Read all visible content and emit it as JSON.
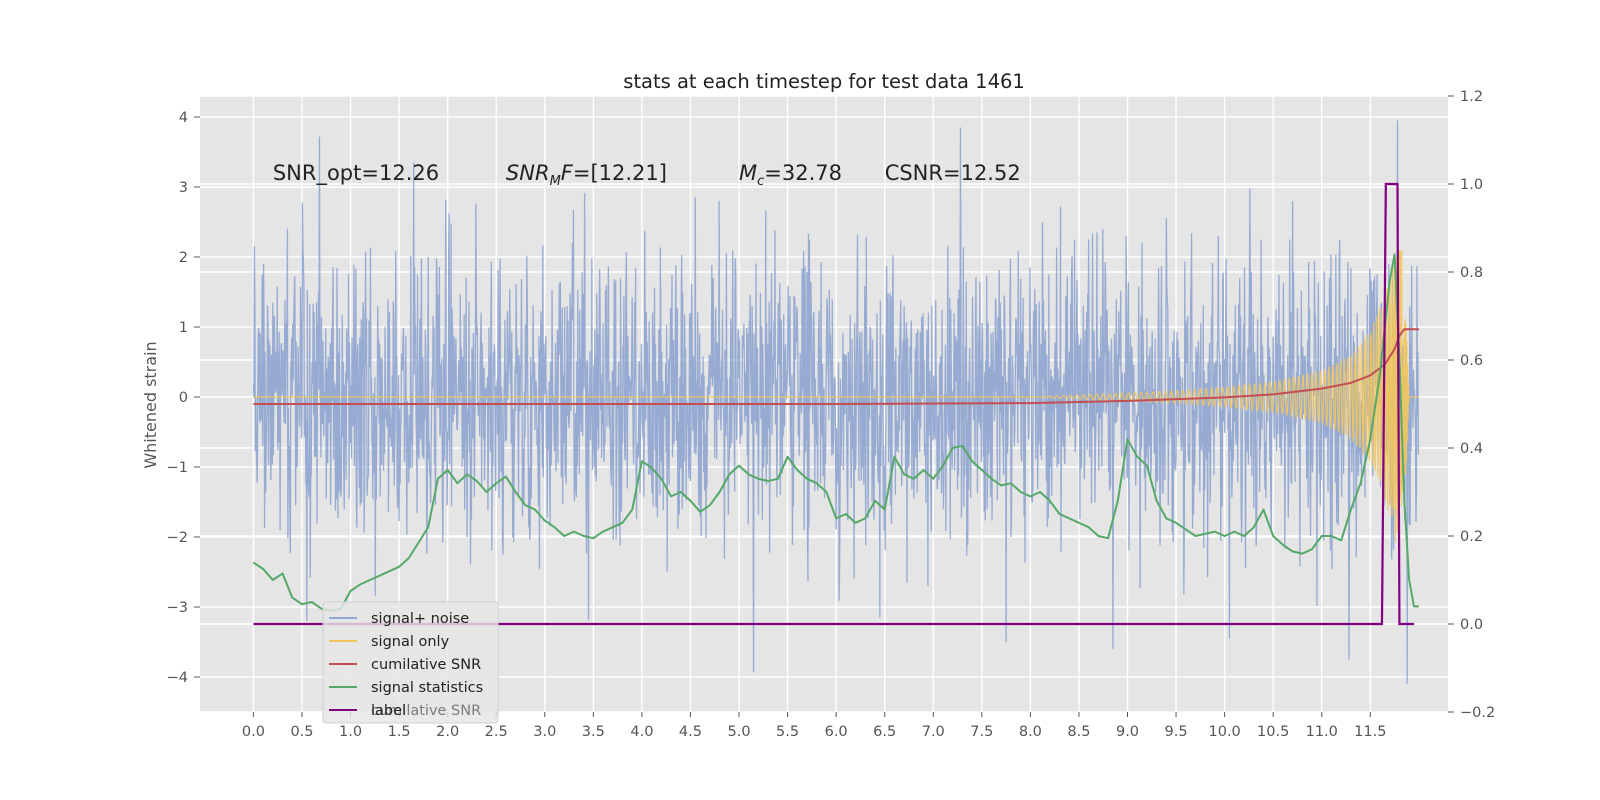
{
  "chart_data": {
    "type": "line",
    "title": "stats at each timestep for test data 1461",
    "ylabel": "Whitened strain",
    "xlabel": "",
    "xlim": [
      -0.55,
      12.3
    ],
    "ylim": [
      -4.5,
      4.3
    ],
    "y2lim": [
      -0.2,
      1.2
    ],
    "grid": true,
    "legend_position": "lower-left",
    "x_ticks": [
      0.0,
      0.5,
      1.0,
      1.5,
      2.0,
      2.5,
      3.0,
      3.5,
      4.0,
      4.5,
      5.0,
      5.5,
      6.0,
      6.5,
      7.0,
      7.5,
      8.0,
      8.5,
      9.0,
      9.5,
      10.0,
      10.5,
      11.0,
      11.5
    ],
    "x_tick_labels": [
      "0.0",
      "0.5",
      "1.0",
      "1.5",
      "2.0",
      "2.5",
      "3.0",
      "3.5",
      "4.0",
      "4.5",
      "5.0",
      "5.5",
      "6.0",
      "6.5",
      "7.0",
      "7.5",
      "8.0",
      "8.5",
      "9.0",
      "9.5",
      "10.0",
      "10.5",
      "11.0",
      "11.5"
    ],
    "y_ticks": [
      4,
      3,
      2,
      1,
      0,
      -1,
      -2,
      -3,
      -4
    ],
    "y_tick_labels": [
      "4",
      "3",
      "2",
      "1",
      "0",
      "−1",
      "−2",
      "−3",
      "−4"
    ],
    "y2_ticks": [
      1.2,
      1.0,
      0.8,
      0.6,
      0.4,
      0.2,
      0.0,
      -0.2
    ],
    "y2_tick_labels": [
      "1.2",
      "1.0",
      "0.8",
      "0.6",
      "0.4",
      "0.2",
      "0.0",
      "−0.2"
    ],
    "series": [
      {
        "name": "signal+ noise",
        "color": "#92a8d1",
        "x_range": [
          0.0,
          12.0
        ],
        "mean": 0.0,
        "std": 1.0,
        "approx_range": [
          -4.1,
          3.9
        ],
        "spike_points": [
          {
            "x": 0.68,
            "y": 3.72
          },
          {
            "x": 0.55,
            "y": -3.2
          },
          {
            "x": 1.65,
            "y": 3.35
          },
          {
            "x": 3.45,
            "y": -3.18
          },
          {
            "x": 5.15,
            "y": -3.93
          },
          {
            "x": 6.45,
            "y": -3.15
          },
          {
            "x": 7.28,
            "y": 3.85
          },
          {
            "x": 7.75,
            "y": -3.5
          },
          {
            "x": 8.85,
            "y": -3.6
          },
          {
            "x": 10.05,
            "y": -3.45
          },
          {
            "x": 10.7,
            "y": 2.8
          },
          {
            "x": 11.28,
            "y": -3.75
          },
          {
            "x": 11.78,
            "y": 3.95
          },
          {
            "x": 11.88,
            "y": -4.1
          }
        ]
      },
      {
        "name": "signal only",
        "color": "#f2c55c",
        "x_range": [
          0.0,
          12.0
        ],
        "envelope": [
          [
            0.0,
            0.0
          ],
          [
            8.0,
            0.0
          ],
          [
            8.5,
            0.03
          ],
          [
            9.0,
            0.06
          ],
          [
            9.5,
            0.09
          ],
          [
            10.0,
            0.14
          ],
          [
            10.5,
            0.22
          ],
          [
            11.0,
            0.38
          ],
          [
            11.3,
            0.6
          ],
          [
            11.5,
            0.95
          ],
          [
            11.65,
            1.45
          ],
          [
            11.75,
            2.05
          ],
          [
            11.82,
            2.2
          ],
          [
            11.87,
            1.0
          ],
          [
            11.9,
            0.0
          ],
          [
            12.0,
            0.0
          ]
        ]
      },
      {
        "name": "cumilative SNR",
        "color": "#c44e52",
        "axis": "right",
        "x": [
          0.0,
          6.0,
          8.0,
          9.0,
          10.0,
          10.5,
          11.0,
          11.3,
          11.5,
          11.65,
          11.75,
          11.8,
          11.85,
          11.9,
          12.0
        ],
        "y": [
          0.5,
          0.5,
          0.502,
          0.507,
          0.515,
          0.522,
          0.535,
          0.548,
          0.565,
          0.59,
          0.625,
          0.655,
          0.67,
          0.67,
          0.67
        ]
      },
      {
        "name": "signal statistics",
        "color": "#55a868",
        "axis": "right",
        "x": [
          0.0,
          0.1,
          0.2,
          0.3,
          0.4,
          0.5,
          0.6,
          0.7,
          0.8,
          0.9,
          1.0,
          1.1,
          1.2,
          1.3,
          1.4,
          1.5,
          1.6,
          1.7,
          1.8,
          1.9,
          2.0,
          2.1,
          2.2,
          2.3,
          2.4,
          2.5,
          2.6,
          2.7,
          2.8,
          2.9,
          3.0,
          3.1,
          3.2,
          3.3,
          3.4,
          3.5,
          3.6,
          3.7,
          3.8,
          3.9,
          4.0,
          4.1,
          4.2,
          4.3,
          4.4,
          4.5,
          4.6,
          4.7,
          4.8,
          4.9,
          5.0,
          5.1,
          5.2,
          5.3,
          5.4,
          5.5,
          5.6,
          5.7,
          5.8,
          5.9,
          6.0,
          6.1,
          6.2,
          6.3,
          6.4,
          6.5,
          6.6,
          6.7,
          6.8,
          6.9,
          7.0,
          7.1,
          7.2,
          7.3,
          7.4,
          7.5,
          7.6,
          7.7,
          7.8,
          7.9,
          8.0,
          8.1,
          8.2,
          8.3,
          8.4,
          8.5,
          8.6,
          8.7,
          8.8,
          8.9,
          9.0,
          9.1,
          9.2,
          9.3,
          9.4,
          9.5,
          9.6,
          9.7,
          9.8,
          9.9,
          10.0,
          10.1,
          10.2,
          10.3,
          10.4,
          10.5,
          10.6,
          10.7,
          10.8,
          10.9,
          11.0,
          11.1,
          11.2,
          11.3,
          11.4,
          11.5,
          11.6,
          11.7,
          11.75,
          11.8,
          11.85,
          11.9,
          11.95,
          12.0
        ],
        "y": [
          0.14,
          0.125,
          0.1,
          0.115,
          0.06,
          0.045,
          0.05,
          0.035,
          0.03,
          0.035,
          0.075,
          0.09,
          0.1,
          0.11,
          0.12,
          0.13,
          0.15,
          0.185,
          0.22,
          0.33,
          0.35,
          0.32,
          0.34,
          0.325,
          0.3,
          0.32,
          0.335,
          0.3,
          0.27,
          0.26,
          0.235,
          0.22,
          0.2,
          0.21,
          0.2,
          0.195,
          0.21,
          0.22,
          0.23,
          0.26,
          0.37,
          0.355,
          0.33,
          0.29,
          0.3,
          0.28,
          0.255,
          0.27,
          0.3,
          0.34,
          0.36,
          0.34,
          0.33,
          0.325,
          0.33,
          0.38,
          0.35,
          0.33,
          0.32,
          0.3,
          0.24,
          0.25,
          0.23,
          0.24,
          0.28,
          0.26,
          0.38,
          0.34,
          0.33,
          0.35,
          0.33,
          0.36,
          0.4,
          0.405,
          0.37,
          0.35,
          0.33,
          0.315,
          0.32,
          0.3,
          0.29,
          0.3,
          0.28,
          0.25,
          0.24,
          0.23,
          0.22,
          0.2,
          0.195,
          0.28,
          0.42,
          0.38,
          0.36,
          0.28,
          0.24,
          0.23,
          0.215,
          0.2,
          0.205,
          0.21,
          0.2,
          0.21,
          0.2,
          0.22,
          0.26,
          0.2,
          0.18,
          0.165,
          0.16,
          0.17,
          0.2,
          0.2,
          0.19,
          0.26,
          0.32,
          0.42,
          0.57,
          0.78,
          0.84,
          0.6,
          0.28,
          0.1,
          0.04,
          0.04
        ]
      },
      {
        "name": "label",
        "color": "#800080",
        "axis": "right",
        "x": [
          0.0,
          11.62,
          11.66,
          11.78,
          11.8,
          11.84,
          11.89,
          11.95
        ],
        "y": [
          0.0,
          0.0,
          1.0,
          1.0,
          0.0,
          0.0,
          0.0,
          0.0
        ]
      }
    ],
    "legend": [
      "signal+ noise",
      "signal only",
      "cumilative SNR",
      "signal statistics",
      "label"
    ],
    "legend_ghost_label": "cumilative SNR",
    "annotations": [
      {
        "prefix": "SNR_opt=12.26",
        "italic": "",
        "sub": "",
        "italic_after": "",
        "suffix": "",
        "x": 0.2,
        "y": 3.1
      },
      {
        "prefix": "",
        "italic": "SNR",
        "sub": "M",
        "italic_after": "F",
        "suffix": "=[12.21]",
        "x": 2.6,
        "y": 3.1
      },
      {
        "prefix": "",
        "italic": "M",
        "sub": "c",
        "italic_after": "",
        "suffix": "=32.78",
        "x": 5.0,
        "y": 3.1
      },
      {
        "prefix": "CSNR=12.52",
        "italic": "",
        "sub": "",
        "italic_after": "",
        "suffix": "",
        "x": 6.5,
        "y": 3.1
      }
    ]
  }
}
